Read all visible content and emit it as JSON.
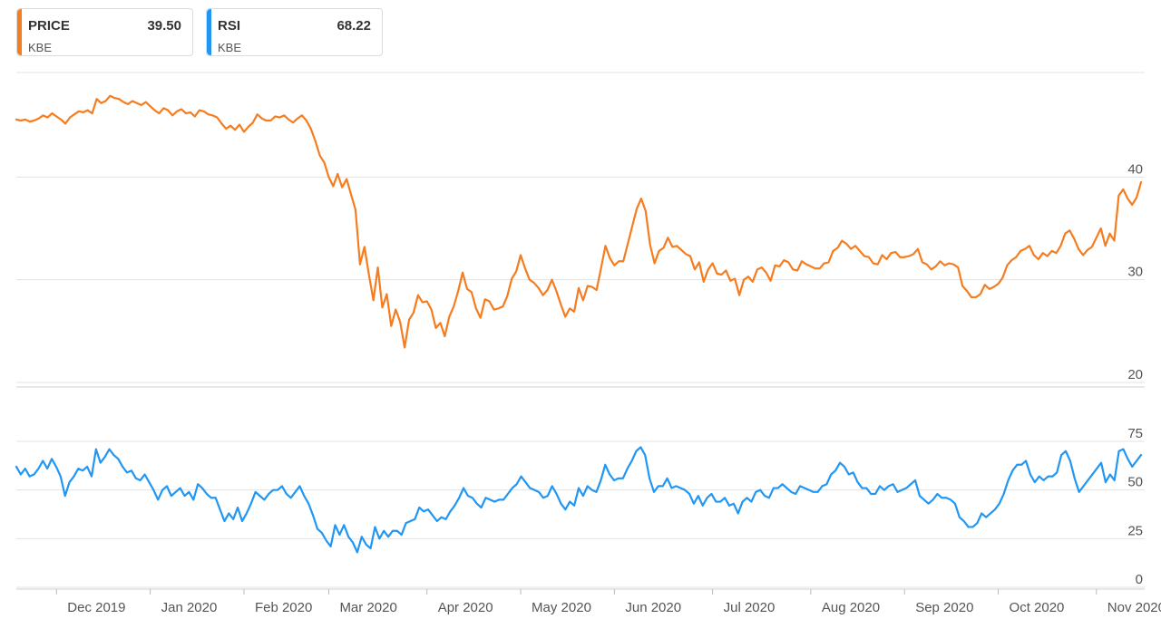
{
  "legend": [
    {
      "name": "PRICE",
      "value": "39.50",
      "ticker": "KBE",
      "color": "#f57c1f"
    },
    {
      "name": "RSI",
      "value": "68.22",
      "ticker": "KBE",
      "color": "#2196f3"
    }
  ],
  "chart_data": [
    {
      "type": "line",
      "panel": "price",
      "series": [
        {
          "name": "PRICE",
          "color": "#f57c1f",
          "values": [
            45.6,
            45.5,
            45.6,
            45.4,
            45.5,
            45.7,
            46.0,
            45.8,
            46.2,
            45.9,
            45.6,
            45.2,
            45.8,
            46.1,
            46.4,
            46.3,
            46.5,
            46.2,
            47.6,
            47.2,
            47.4,
            47.9,
            47.7,
            47.6,
            47.3,
            47.1,
            47.4,
            47.2,
            47.0,
            47.3,
            46.9,
            46.5,
            46.2,
            46.7,
            46.5,
            46.0,
            46.4,
            46.6,
            46.2,
            46.3,
            45.9,
            46.5,
            46.4,
            46.1,
            46.0,
            45.8,
            45.2,
            44.7,
            45.0,
            44.6,
            45.1,
            44.4,
            44.9,
            45.3,
            46.1,
            45.7,
            45.5,
            45.5,
            45.9,
            45.8,
            46.0,
            45.6,
            45.3,
            45.7,
            46.0,
            45.5,
            44.7,
            43.5,
            42.1,
            41.4,
            40.0,
            39.1,
            40.3,
            39.0,
            39.8,
            38.3,
            36.8,
            31.5,
            33.2,
            30.5,
            28.0,
            31.2,
            27.3,
            28.6,
            25.5,
            27.1,
            25.9,
            23.4,
            26.1,
            26.8,
            28.5,
            27.8,
            27.9,
            27.1,
            25.3,
            25.8,
            24.5,
            26.4,
            27.4,
            28.9,
            30.7,
            29.1,
            28.8,
            27.2,
            26.3,
            28.1,
            27.9,
            27.1,
            27.2,
            27.4,
            28.4,
            30.1,
            30.8,
            32.4,
            31.1,
            30.0,
            29.7,
            29.2,
            28.5,
            29.0,
            30.0,
            28.9,
            27.6,
            26.4,
            27.2,
            26.9,
            29.2,
            28.0,
            29.4,
            29.3,
            29.0,
            31.1,
            33.3,
            32.1,
            31.4,
            31.8,
            31.8,
            33.5,
            35.2,
            36.9,
            37.9,
            36.7,
            33.4,
            31.6,
            32.8,
            33.1,
            34.1,
            33.2,
            33.3,
            32.9,
            32.5,
            32.3,
            31.0,
            31.7,
            29.8,
            31.0,
            31.6,
            30.6,
            30.5,
            30.9,
            29.9,
            30.1,
            28.5,
            30.0,
            30.3,
            29.8,
            31.0,
            31.2,
            30.7,
            29.9,
            31.4,
            31.3,
            31.9,
            31.7,
            31.0,
            30.9,
            31.8,
            31.5,
            31.3,
            31.1,
            31.1,
            31.6,
            31.7,
            32.8,
            33.1,
            33.8,
            33.5,
            33.0,
            33.3,
            32.8,
            32.3,
            32.2,
            31.6,
            31.5,
            32.4,
            32.0,
            32.6,
            32.7,
            32.2,
            32.2,
            32.3,
            32.5,
            33.0,
            31.7,
            31.5,
            31.0,
            31.3,
            31.8,
            31.4,
            31.6,
            31.5,
            31.2,
            29.4,
            28.9,
            28.3,
            28.3,
            28.6,
            29.5,
            29.1,
            29.3,
            29.6,
            30.2,
            31.4,
            31.9,
            32.2,
            32.8,
            33.0,
            33.3,
            32.4,
            32.0,
            32.6,
            32.3,
            32.8,
            32.6,
            33.3,
            34.5,
            34.8,
            34.0,
            33.0,
            32.4,
            32.9,
            33.2,
            34.1,
            35.0,
            33.3,
            34.5,
            33.8,
            38.2,
            38.8,
            37.9,
            37.3,
            38.0,
            39.5
          ]
        }
      ],
      "ylim": [
        20,
        50
      ],
      "yticks": [
        "40",
        "30",
        "20"
      ]
    },
    {
      "type": "line",
      "panel": "rsi",
      "series": [
        {
          "name": "RSI",
          "color": "#2196f3",
          "values": [
            62,
            58,
            61,
            57,
            58,
            61,
            65,
            61,
            66,
            62,
            57,
            47,
            54,
            57,
            61,
            60,
            62,
            57,
            71,
            64,
            67,
            71,
            68,
            66,
            62,
            59,
            60,
            56,
            55,
            58,
            54,
            50,
            45,
            50,
            52,
            47,
            49,
            51,
            47,
            49,
            45,
            53,
            51,
            48,
            46,
            46,
            40,
            34,
            38,
            35,
            41,
            34,
            38,
            43,
            49,
            47,
            45,
            48,
            50,
            50,
            52,
            48,
            46,
            49,
            52,
            47,
            43,
            37,
            30,
            28,
            24,
            21,
            32,
            27,
            32,
            26,
            23,
            18,
            26,
            22,
            20,
            31,
            25,
            29,
            26,
            29,
            29,
            27,
            33,
            34,
            35,
            41,
            39,
            40,
            37,
            34,
            36,
            35,
            39,
            42,
            46,
            51,
            47,
            46,
            43,
            41,
            46,
            45,
            44,
            45,
            45,
            48,
            51,
            53,
            57,
            54,
            51,
            50,
            49,
            46,
            47,
            52,
            48,
            43,
            40,
            44,
            42,
            51,
            47,
            52,
            50,
            49,
            55,
            63,
            58,
            55,
            56,
            56,
            61,
            65,
            70,
            72,
            68,
            56,
            49,
            52,
            52,
            56,
            51,
            52,
            51,
            50,
            48,
            43,
            47,
            42,
            46,
            48,
            44,
            44,
            46,
            42,
            43,
            38,
            44,
            46,
            44,
            49,
            50,
            47,
            46,
            51,
            51,
            53,
            51,
            49,
            48,
            52,
            51,
            50,
            49,
            49,
            52,
            53,
            58,
            60,
            64,
            62,
            58,
            59,
            54,
            51,
            51,
            48,
            48,
            52,
            50,
            52,
            53,
            49,
            50,
            51,
            53,
            55,
            47,
            45,
            43,
            45,
            48,
            46,
            46,
            45,
            43,
            36,
            34,
            31,
            31,
            33,
            38,
            36,
            38,
            40,
            43,
            48,
            55,
            60,
            63,
            63,
            65,
            58,
            54,
            57,
            55,
            57,
            57,
            59,
            68,
            70,
            65,
            56,
            49,
            52,
            55,
            58,
            61,
            64,
            54,
            58,
            55,
            70,
            71,
            66,
            62,
            65,
            68
          ]
        }
      ],
      "ylim": [
        0,
        82
      ],
      "yticks": [
        "75",
        "50",
        "25",
        "0"
      ]
    }
  ],
  "x_axis": {
    "labels": [
      "Dec 2019",
      "Jan 2020",
      "Feb 2020",
      "Mar 2020",
      "Apr 2020",
      "May 2020",
      "Jun 2020",
      "Jul 2020",
      "Aug 2020",
      "Sep 2020",
      "Oct 2020",
      "Nov 2020"
    ]
  }
}
